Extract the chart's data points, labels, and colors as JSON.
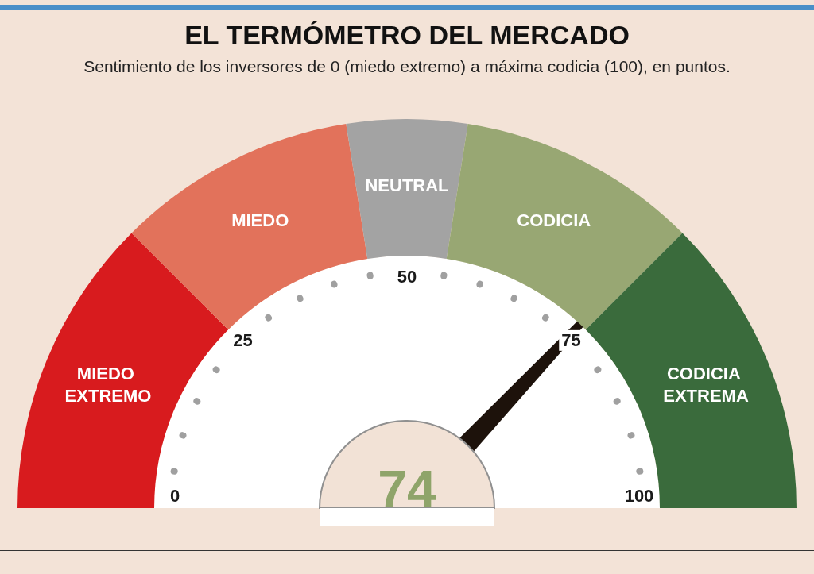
{
  "chart_data": {
    "type": "donut",
    "title": "EL TERMÓMETRO DEL MERCADO",
    "subtitle": "Sentimiento de los inversores de 0 (miedo extremo) a máxima codicia (100), en puntos.",
    "categories": [
      "MIEDO EXTREMO",
      "MIEDO",
      "NEUTRAL",
      "CODICIA",
      "CODICIA EXTREMA"
    ],
    "values": [
      25,
      20,
      10,
      20,
      25
    ],
    "colors": [
      "#d81b1e",
      "#e2725b",
      "#a3a3a3",
      "#98a773",
      "#3a6b3c"
    ],
    "needle": "CODICIA",
    "annotations": [
      "74",
      "0",
      "25",
      "50",
      "75",
      "100"
    ],
    "legend": false
  }
}
